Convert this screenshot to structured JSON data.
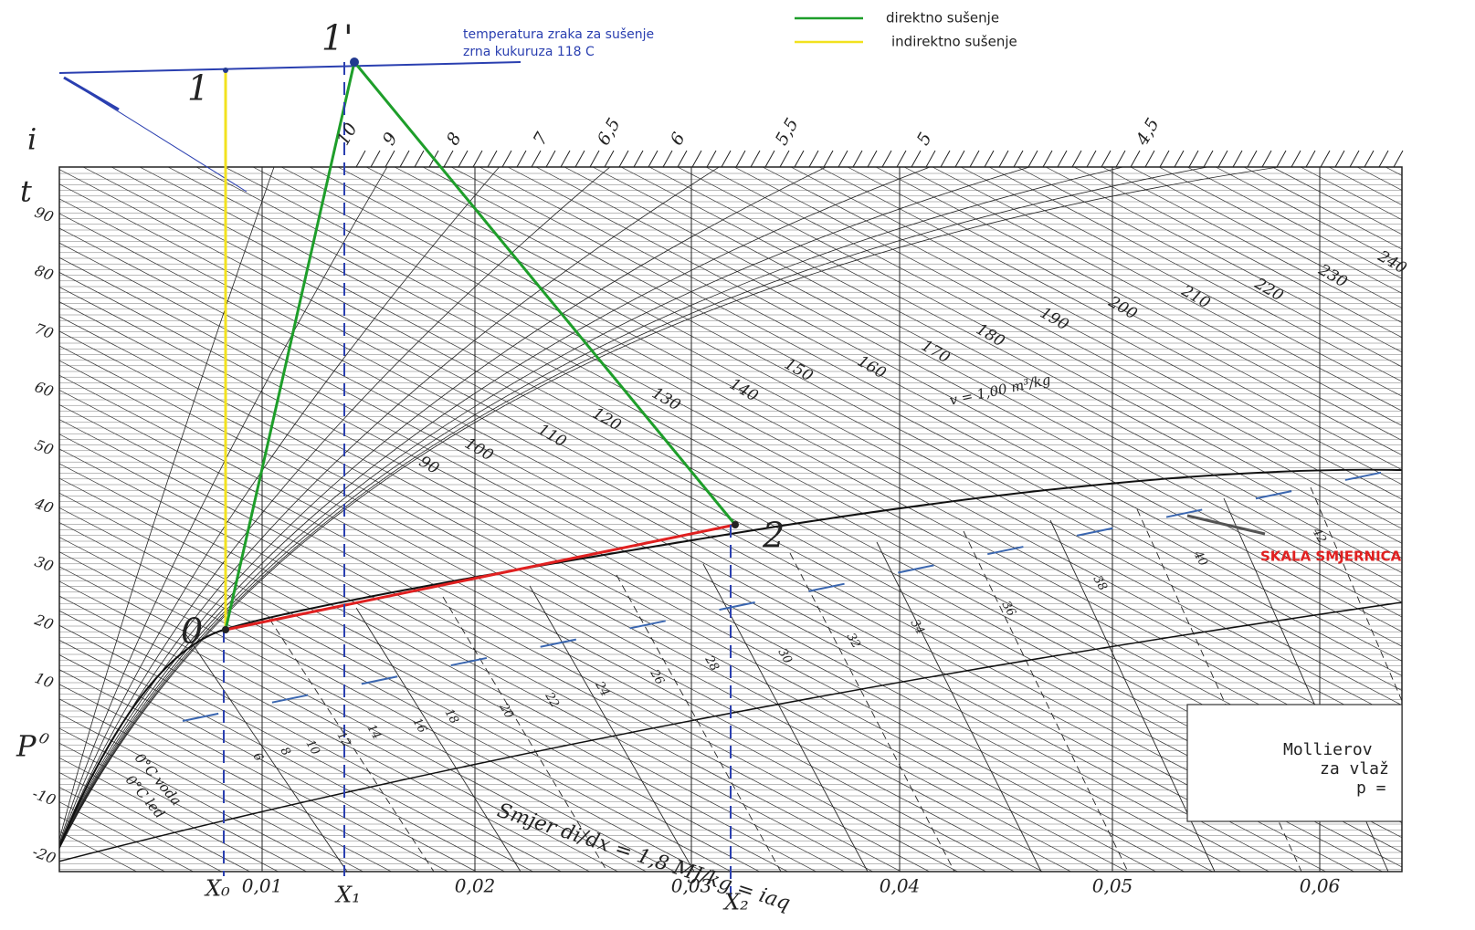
{
  "legend": [
    {
      "label": "direktno sušenje",
      "color": "#1e9e2a"
    },
    {
      "label": "indirektno sušenje",
      "color": "#f2e21e"
    }
  ],
  "annotation": [
    "temperatura zraka za sušenje",
    "zrna kukuruza 118  C"
  ],
  "points": [
    "1",
    "1'",
    "0",
    "2"
  ],
  "x_marks": [
    "X₀",
    "X₁",
    "X₂"
  ],
  "axis_symbols": [
    "i",
    "t",
    "P"
  ],
  "x_labels": [
    "0,01",
    "0,02",
    "0,03",
    "0,04",
    "0,05",
    "0,06"
  ],
  "t_labels": [
    90,
    80,
    70,
    60,
    50,
    40,
    30,
    20,
    10,
    0,
    -10,
    -20
  ],
  "top_scale": [
    "10",
    "9",
    "8",
    "7",
    "6,5",
    "6",
    "5,5",
    "5",
    "4,5"
  ],
  "enthalpy_labels": [
    90,
    100,
    110,
    120,
    130,
    140,
    150,
    160,
    170,
    180,
    190,
    200,
    210,
    220,
    230,
    240
  ],
  "direction_scale": [
    6,
    8,
    10,
    12,
    14,
    16,
    18,
    20,
    22,
    24,
    26,
    28,
    30,
    32,
    34,
    36,
    38,
    40,
    42
  ],
  "direction_note": "Smjer di/dx = 1,8 MJ/kg = iaq",
  "scale_label": "SKALA SMJERNICA",
  "title_block": [
    "Mollierov",
    "za vlaž",
    "p ="
  ],
  "zero_labels": [
    "0°C voda",
    "0°C led"
  ],
  "volume_label": "v = 1,00 m³/kg"
}
